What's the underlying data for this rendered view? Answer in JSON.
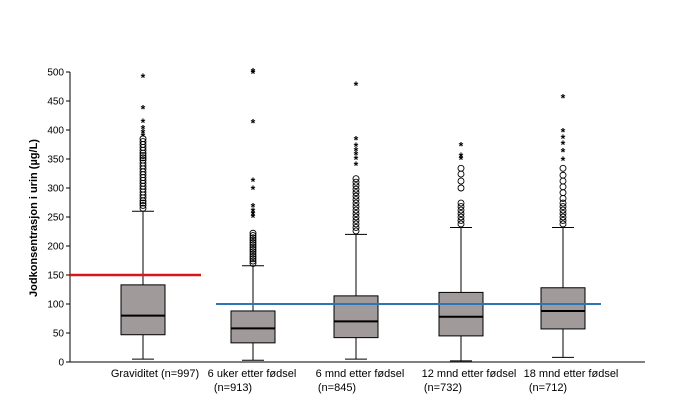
{
  "chart_data": {
    "type": "box",
    "title": "",
    "xlabel": "",
    "ylabel": "Jodkonsentrasjon i urin (µg/L)",
    "ylim": [
      0,
      500
    ],
    "yticks": [
      0,
      50,
      100,
      150,
      200,
      250,
      300,
      350,
      400,
      450,
      500
    ],
    "box_color": "#a09a9a",
    "reference_lines": [
      {
        "value": 150,
        "color": "#d9141b",
        "applies_to": "Graviditet"
      },
      {
        "value": 100,
        "color": "#2e75b6",
        "applies_to": "6 uker etter fødsel – 18 mnd etter fødsel"
      }
    ],
    "groups": [
      {
        "label_line1": "Graviditet (n=997)",
        "label_line2": "",
        "min": 5,
        "q1": 47,
        "median": 80,
        "q3": 133,
        "max": 260,
        "outliers_circle": [
          265,
          270,
          274,
          278,
          283,
          288,
          293,
          298,
          303,
          308,
          313,
          318,
          323,
          328,
          333,
          338,
          343,
          348,
          352,
          356,
          360,
          365,
          370,
          375,
          380,
          385
        ],
        "outliers_star": [
          390,
          396,
          403,
          414,
          437,
          491
        ]
      },
      {
        "label_line1": "6 uker etter fødsel",
        "label_line2": "(n=913)",
        "min": 3,
        "q1": 33,
        "median": 58,
        "q3": 88,
        "max": 166,
        "outliers_circle": [
          170,
          174,
          178,
          182,
          186,
          190,
          194,
          198,
          202,
          206,
          210,
          214,
          218,
          222
        ],
        "outliers_star": [
          250,
          255,
          260,
          268,
          298,
          312,
          413,
          498,
          501
        ]
      },
      {
        "label_line1": "6 mnd etter fødsel",
        "label_line2": "(n=845)",
        "min": 5,
        "q1": 42,
        "median": 70,
        "q3": 114,
        "max": 220,
        "outliers_circle": [
          226,
          232,
          238,
          244,
          250,
          256,
          262,
          268,
          274,
          280,
          286,
          292,
          298,
          304,
          310,
          316
        ],
        "outliers_star": [
          340,
          350,
          358,
          365,
          372,
          384,
          478
        ]
      },
      {
        "label_line1": "12 mnd etter fødsel",
        "label_line2": "(n=732)",
        "min": 2,
        "q1": 45,
        "median": 78,
        "q3": 120,
        "max": 232,
        "outliers_circle": [
          238,
          244,
          250,
          256,
          262,
          268,
          274,
          300,
          312,
          324,
          334
        ],
        "outliers_star": [
          350,
          355,
          373
        ]
      },
      {
        "label_line1": "18 mnd etter fødsel",
        "label_line2": "(n=712)",
        "min": 8,
        "q1": 57,
        "median": 88,
        "q3": 128,
        "max": 232,
        "outliers_circle": [
          238,
          244,
          250,
          256,
          262,
          268,
          274,
          282,
          292,
          302,
          312,
          322,
          334
        ],
        "outliers_star": [
          348,
          363,
          376,
          386,
          397,
          456
        ]
      }
    ]
  }
}
